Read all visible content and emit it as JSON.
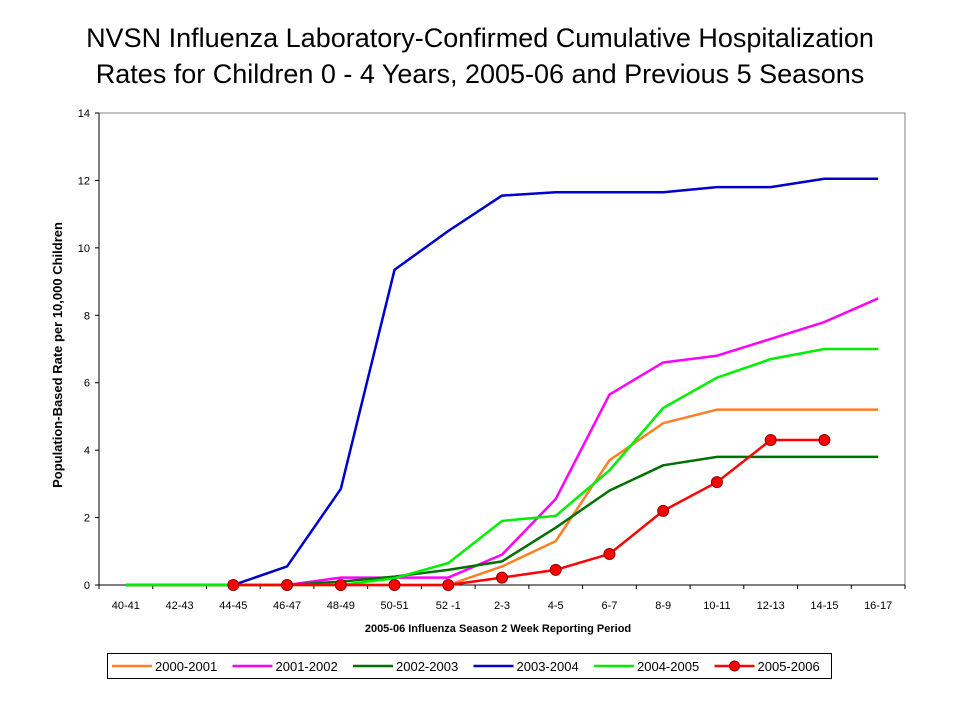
{
  "title_line1": "NVSN Influenza Laboratory-Confirmed Cumulative Hospitalization",
  "title_line2": "Rates for Children 0 - 4 Years, 2005-06 and Previous 5 Seasons",
  "chart_data": {
    "type": "line",
    "title": "NVSN Influenza Laboratory-Confirmed Cumulative Hospitalization Rates for Children 0 - 4 Years, 2005-06 and Previous 5 Seasons",
    "xlabel": "2005-06 Influenza Season 2 Week Reporting Period",
    "ylabel": "Population-Based Rate per 10,000 Children",
    "ylim": [
      0,
      14
    ],
    "yticks": [
      0,
      2,
      4,
      6,
      8,
      10,
      12,
      14
    ],
    "grid": false,
    "legend_position": "bottom",
    "categories": [
      "40-41",
      "42-43",
      "44-45",
      "46-47",
      "48-49",
      "50-51",
      "52 -1",
      "2-3",
      "4-5",
      "6-7",
      "8-9",
      "10-11",
      "12-13",
      "14-15",
      "16-17"
    ],
    "series": [
      {
        "name": "2000-2001",
        "color": "#ff7f27",
        "marker": false,
        "values": [
          0,
          0,
          0,
          0,
          0,
          0,
          0,
          0.55,
          1.3,
          3.7,
          4.8,
          5.2,
          5.2,
          5.2,
          5.2
        ]
      },
      {
        "name": "2001-2002",
        "color": "#ff00ff",
        "marker": false,
        "values": [
          0,
          0,
          0,
          0,
          0.22,
          0.22,
          0.22,
          0.9,
          2.55,
          5.65,
          6.6,
          6.8,
          7.3,
          7.8,
          8.5
        ]
      },
      {
        "name": "2002-2003",
        "color": "#007000",
        "marker": false,
        "values": [
          0,
          0,
          0,
          0,
          0.1,
          0.25,
          0.45,
          0.7,
          1.7,
          2.8,
          3.55,
          3.8,
          3.8,
          3.8,
          3.8
        ]
      },
      {
        "name": "2003-2004",
        "color": "#0000cc",
        "marker": false,
        "values": [
          null,
          null,
          0,
          0.55,
          2.85,
          9.35,
          10.5,
          11.55,
          11.65,
          11.65,
          11.65,
          11.8,
          11.8,
          12.05,
          12.05
        ]
      },
      {
        "name": "2004-2005",
        "color": "#00ee00",
        "marker": false,
        "values": [
          0,
          0,
          0,
          0,
          0,
          0.2,
          0.65,
          1.9,
          2.05,
          3.4,
          5.25,
          6.15,
          6.7,
          7.0,
          7.0
        ]
      },
      {
        "name": "2005-2006",
        "color": "#ff0000",
        "marker": true,
        "values": [
          null,
          null,
          0,
          0,
          0,
          0,
          0,
          0.22,
          0.45,
          0.92,
          2.2,
          3.05,
          4.3,
          4.3,
          null
        ]
      }
    ]
  }
}
